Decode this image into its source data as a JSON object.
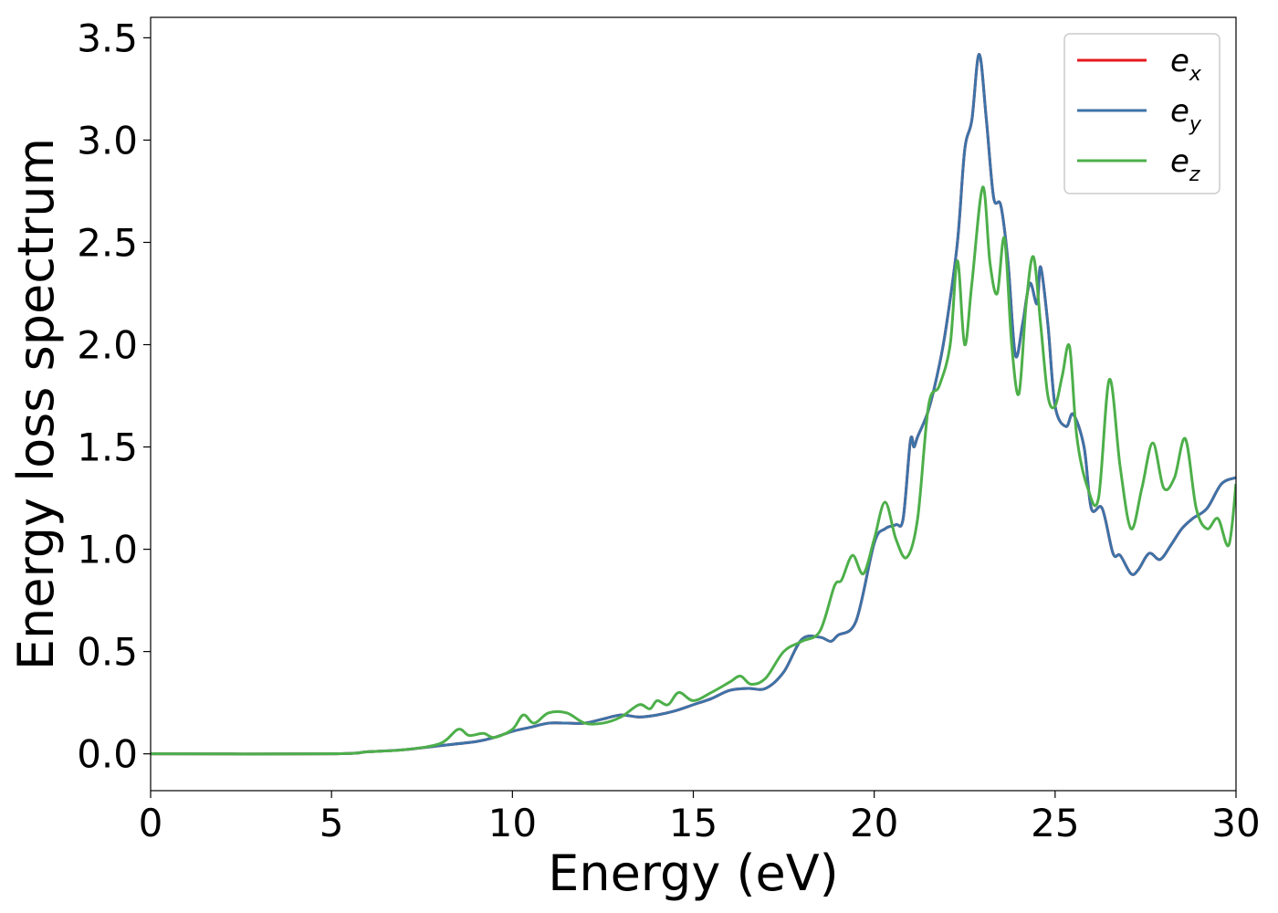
{
  "chart_data": {
    "type": "line",
    "title": "",
    "xlabel": "Energy (eV)",
    "ylabel": "Energy loss spectrum",
    "xlim": [
      0,
      30
    ],
    "ylim": [
      -0.18,
      3.6
    ],
    "xticks": [
      0,
      5,
      10,
      15,
      20,
      25,
      30
    ],
    "yticks": [
      0.0,
      0.5,
      1.0,
      1.5,
      2.0,
      2.5,
      3.0,
      3.5
    ],
    "xtick_labels": [
      "0",
      "5",
      "10",
      "15",
      "20",
      "25",
      "30"
    ],
    "ytick_labels": [
      "0.0",
      "0.5",
      "1.0",
      "1.5",
      "2.0",
      "2.5",
      "3.0",
      "3.5"
    ],
    "grid": false,
    "legend_position": "top-right",
    "series": [
      {
        "name": "e",
        "subscript": "x",
        "color": "#e41a1c",
        "x": [
          0,
          5,
          6,
          7,
          8,
          9,
          9.5,
          10,
          10.5,
          11,
          11.5,
          12,
          12.5,
          13,
          13.5,
          14,
          14.5,
          15,
          15.5,
          16,
          16.5,
          17,
          17.5,
          18,
          18.5,
          18.8,
          19,
          19.5,
          20,
          20.3,
          20.6,
          20.8,
          21,
          21.1,
          21.2,
          21.5,
          21.8,
          22,
          22.3,
          22.5,
          22.7,
          22.9,
          23.1,
          23.3,
          23.5,
          23.7,
          23.9,
          24.1,
          24.3,
          24.5,
          24.6,
          24.8,
          25,
          25.3,
          25.5,
          25.8,
          26,
          26.3,
          26.6,
          26.8,
          27.1,
          27.3,
          27.6,
          27.9,
          28.2,
          28.5,
          28.8,
          29.2,
          29.6,
          30
        ],
        "values": [
          0.0,
          0.0,
          0.01,
          0.02,
          0.04,
          0.06,
          0.08,
          0.11,
          0.13,
          0.15,
          0.15,
          0.15,
          0.17,
          0.19,
          0.18,
          0.19,
          0.21,
          0.24,
          0.27,
          0.31,
          0.32,
          0.32,
          0.4,
          0.56,
          0.57,
          0.55,
          0.58,
          0.65,
          1.03,
          1.1,
          1.12,
          1.15,
          1.53,
          1.5,
          1.55,
          1.68,
          1.9,
          2.1,
          2.5,
          2.95,
          3.1,
          3.42,
          3.1,
          2.72,
          2.68,
          2.4,
          1.95,
          2.1,
          2.3,
          2.2,
          2.38,
          2.1,
          1.7,
          1.6,
          1.66,
          1.5,
          1.2,
          1.2,
          0.98,
          0.97,
          0.88,
          0.9,
          0.98,
          0.95,
          1.02,
          1.1,
          1.15,
          1.2,
          1.32,
          1.35
        ]
      },
      {
        "name": "e",
        "subscript": "y",
        "color": "#3d73a8",
        "x": [
          0,
          5,
          6,
          7,
          8,
          9,
          9.5,
          10,
          10.5,
          11,
          11.5,
          12,
          12.5,
          13,
          13.5,
          14,
          14.5,
          15,
          15.5,
          16,
          16.5,
          17,
          17.5,
          18,
          18.5,
          18.8,
          19,
          19.5,
          20,
          20.3,
          20.6,
          20.8,
          21,
          21.1,
          21.2,
          21.5,
          21.8,
          22,
          22.3,
          22.5,
          22.7,
          22.9,
          23.1,
          23.3,
          23.5,
          23.7,
          23.9,
          24.1,
          24.3,
          24.5,
          24.6,
          24.8,
          25,
          25.3,
          25.5,
          25.8,
          26,
          26.3,
          26.6,
          26.8,
          27.1,
          27.3,
          27.6,
          27.9,
          28.2,
          28.5,
          28.8,
          29.2,
          29.6,
          30
        ],
        "values": [
          0.0,
          0.0,
          0.01,
          0.02,
          0.04,
          0.06,
          0.08,
          0.11,
          0.13,
          0.15,
          0.15,
          0.15,
          0.17,
          0.19,
          0.18,
          0.19,
          0.21,
          0.24,
          0.27,
          0.31,
          0.32,
          0.32,
          0.4,
          0.56,
          0.57,
          0.55,
          0.58,
          0.65,
          1.03,
          1.1,
          1.12,
          1.15,
          1.53,
          1.5,
          1.55,
          1.68,
          1.9,
          2.1,
          2.5,
          2.95,
          3.1,
          3.42,
          3.1,
          2.72,
          2.68,
          2.4,
          1.95,
          2.1,
          2.3,
          2.2,
          2.38,
          2.1,
          1.7,
          1.6,
          1.66,
          1.5,
          1.2,
          1.2,
          0.98,
          0.97,
          0.88,
          0.9,
          0.98,
          0.95,
          1.02,
          1.1,
          1.15,
          1.2,
          1.32,
          1.35
        ]
      },
      {
        "name": "e",
        "subscript": "z",
        "color": "#4daf4a",
        "x": [
          0,
          5,
          6,
          7,
          8,
          8.5,
          8.8,
          9.2,
          9.5,
          10,
          10.3,
          10.6,
          11,
          11.5,
          12,
          12.5,
          13,
          13.5,
          13.8,
          14,
          14.3,
          14.6,
          15,
          15.5,
          16,
          16.3,
          16.6,
          17,
          17.5,
          18,
          18.5,
          18.9,
          19.1,
          19.4,
          19.7,
          20,
          20.3,
          20.6,
          20.9,
          21.2,
          21.5,
          21.8,
          22.1,
          22.3,
          22.5,
          22.7,
          23,
          23.2,
          23.4,
          23.6,
          23.8,
          24,
          24.2,
          24.4,
          24.6,
          24.8,
          25,
          25.2,
          25.4,
          25.6,
          25.9,
          26.2,
          26.5,
          26.8,
          27.1,
          27.4,
          27.7,
          28,
          28.3,
          28.6,
          28.9,
          29.2,
          29.5,
          29.8,
          30
        ],
        "values": [
          0.0,
          0.0,
          0.01,
          0.02,
          0.05,
          0.12,
          0.09,
          0.1,
          0.08,
          0.12,
          0.19,
          0.15,
          0.2,
          0.2,
          0.15,
          0.15,
          0.18,
          0.24,
          0.22,
          0.26,
          0.24,
          0.3,
          0.26,
          0.3,
          0.35,
          0.38,
          0.34,
          0.37,
          0.5,
          0.55,
          0.6,
          0.82,
          0.85,
          0.97,
          0.88,
          1.05,
          1.23,
          1.05,
          0.96,
          1.15,
          1.7,
          1.8,
          2.0,
          2.41,
          2.0,
          2.3,
          2.77,
          2.4,
          2.25,
          2.52,
          2.0,
          1.76,
          2.2,
          2.43,
          2.1,
          1.75,
          1.7,
          1.85,
          1.99,
          1.55,
          1.3,
          1.25,
          1.83,
          1.4,
          1.1,
          1.3,
          1.52,
          1.3,
          1.35,
          1.54,
          1.2,
          1.1,
          1.15,
          1.02,
          1.32
        ]
      }
    ]
  }
}
